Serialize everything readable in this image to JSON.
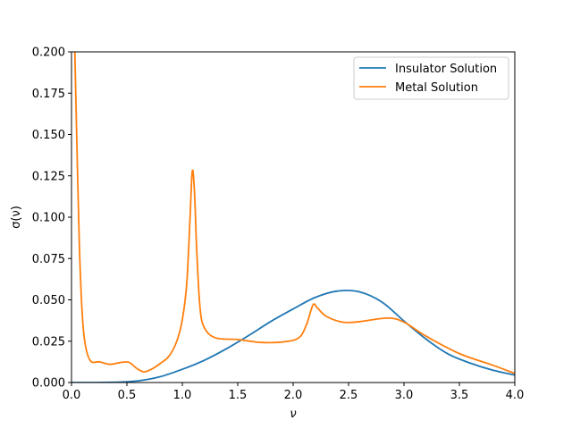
{
  "chart_data": {
    "type": "line",
    "title": "",
    "xlabel": "ν",
    "ylabel": "σ(ν)",
    "xlim": [
      0.0,
      4.0
    ],
    "ylim": [
      0.0,
      0.2
    ],
    "x_ticks": [
      "0.0",
      "0.5",
      "1.0",
      "1.5",
      "2.0",
      "2.5",
      "3.0",
      "3.5",
      "4.0"
    ],
    "y_ticks": [
      "0.000",
      "0.025",
      "0.050",
      "0.075",
      "0.100",
      "0.125",
      "0.150",
      "0.175",
      "0.200"
    ],
    "grid": false,
    "legend_position": "top-right",
    "series": [
      {
        "name": "Insulator Solution",
        "color": "#1f77b4",
        "points": [
          [
            0.0,
            0.0
          ],
          [
            0.2,
            0.0
          ],
          [
            0.4,
            0.0002
          ],
          [
            0.6,
            0.001
          ],
          [
            0.8,
            0.0035
          ],
          [
            1.0,
            0.008
          ],
          [
            1.2,
            0.0135
          ],
          [
            1.4,
            0.0205
          ],
          [
            1.6,
            0.0285
          ],
          [
            1.8,
            0.037
          ],
          [
            2.0,
            0.0445
          ],
          [
            2.2,
            0.0515
          ],
          [
            2.4,
            0.0553
          ],
          [
            2.6,
            0.0548
          ],
          [
            2.8,
            0.0487
          ],
          [
            3.0,
            0.0372
          ],
          [
            3.2,
            0.0262
          ],
          [
            3.4,
            0.0172
          ],
          [
            3.6,
            0.0117
          ],
          [
            3.8,
            0.0075
          ],
          [
            4.0,
            0.0045
          ]
        ]
      },
      {
        "name": "Metal Solution",
        "color": "#ff7f0e",
        "points": [
          [
            0.03,
            0.2
          ],
          [
            0.05,
            0.14
          ],
          [
            0.07,
            0.085
          ],
          [
            0.09,
            0.05
          ],
          [
            0.11,
            0.03
          ],
          [
            0.14,
            0.018
          ],
          [
            0.18,
            0.0125
          ],
          [
            0.25,
            0.0125
          ],
          [
            0.35,
            0.011
          ],
          [
            0.45,
            0.0122
          ],
          [
            0.52,
            0.0122
          ],
          [
            0.58,
            0.009
          ],
          [
            0.65,
            0.0065
          ],
          [
            0.72,
            0.008
          ],
          [
            0.8,
            0.0115
          ],
          [
            0.88,
            0.016
          ],
          [
            0.95,
            0.025
          ],
          [
            1.0,
            0.038
          ],
          [
            1.04,
            0.06
          ],
          [
            1.07,
            0.1
          ],
          [
            1.09,
            0.128
          ],
          [
            1.11,
            0.115
          ],
          [
            1.13,
            0.08
          ],
          [
            1.16,
            0.045
          ],
          [
            1.2,
            0.033
          ],
          [
            1.3,
            0.027
          ],
          [
            1.5,
            0.026
          ],
          [
            1.7,
            0.0243
          ],
          [
            1.9,
            0.0245
          ],
          [
            2.05,
            0.027
          ],
          [
            2.12,
            0.035
          ],
          [
            2.18,
            0.047
          ],
          [
            2.22,
            0.045
          ],
          [
            2.3,
            0.04
          ],
          [
            2.45,
            0.0365
          ],
          [
            2.6,
            0.0368
          ],
          [
            2.85,
            0.039
          ],
          [
            3.0,
            0.0365
          ],
          [
            3.2,
            0.028
          ],
          [
            3.5,
            0.0175
          ],
          [
            3.8,
            0.0105
          ],
          [
            4.0,
            0.0055
          ]
        ]
      }
    ]
  }
}
